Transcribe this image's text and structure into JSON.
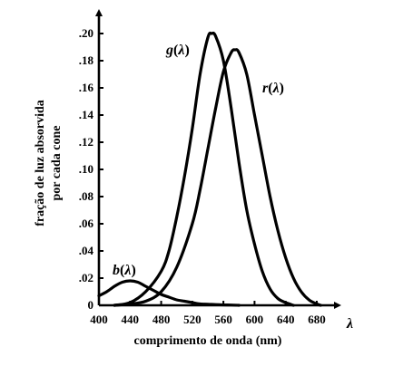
{
  "chart_data": {
    "type": "line",
    "title": "",
    "xlabel": "comprimento de onda (nm)",
    "ylabel_lines": [
      "fração de luz absorvida",
      "por cada cone"
    ],
    "x_axis_symbol": "λ",
    "xlim": [
      400,
      690
    ],
    "ylim": [
      0,
      0.2
    ],
    "x_ticks": [
      400,
      440,
      480,
      520,
      560,
      600,
      640,
      680
    ],
    "x_tick_labels": [
      "400",
      "440",
      "480",
      "520",
      "560",
      "600",
      "640",
      "680"
    ],
    "y_ticks": [
      0,
      0.02,
      0.04,
      0.06,
      0.08,
      0.1,
      0.12,
      0.14,
      0.16,
      0.18,
      0.2
    ],
    "y_tick_labels": [
      "0",
      ".02",
      ".04",
      ".06",
      ".08",
      ".10",
      ".12",
      ".14",
      ".16",
      ".18",
      ".20"
    ],
    "grid": false,
    "series": [
      {
        "name": "b(λ)",
        "label_main": "b",
        "label_arg": "λ",
        "x": [
          400,
          410,
          420,
          430,
          440,
          450,
          460,
          470,
          480,
          490,
          500,
          510,
          520,
          530,
          540,
          550,
          560,
          570,
          580
        ],
        "y": [
          0.007,
          0.01,
          0.014,
          0.017,
          0.018,
          0.017,
          0.014,
          0.011,
          0.008,
          0.006,
          0.004,
          0.003,
          0.002,
          0.001,
          0.0008,
          0.0005,
          0.0003,
          0.0002,
          0.0
        ]
      },
      {
        "name": "g(λ)",
        "label_main": "g",
        "label_arg": "λ",
        "x": [
          420,
          440,
          460,
          480,
          490,
          500,
          510,
          520,
          530,
          540,
          545,
          550,
          560,
          570,
          580,
          590,
          600,
          610,
          620,
          630,
          640,
          650
        ],
        "y": [
          0.0,
          0.002,
          0.01,
          0.025,
          0.04,
          0.065,
          0.095,
          0.13,
          0.17,
          0.197,
          0.2,
          0.198,
          0.18,
          0.145,
          0.105,
          0.07,
          0.045,
          0.025,
          0.012,
          0.005,
          0.002,
          0.0
        ]
      },
      {
        "name": "r(λ)",
        "label_main": "r",
        "label_arg": "λ",
        "x": [
          420,
          440,
          460,
          480,
          500,
          520,
          530,
          540,
          550,
          560,
          570,
          575,
          580,
          590,
          600,
          610,
          620,
          630,
          640,
          650,
          660,
          670,
          680,
          685
        ],
        "y": [
          0.0,
          0.001,
          0.003,
          0.01,
          0.028,
          0.06,
          0.085,
          0.115,
          0.145,
          0.172,
          0.186,
          0.188,
          0.186,
          0.17,
          0.14,
          0.11,
          0.08,
          0.055,
          0.035,
          0.02,
          0.01,
          0.004,
          0.001,
          0.0
        ]
      }
    ]
  }
}
